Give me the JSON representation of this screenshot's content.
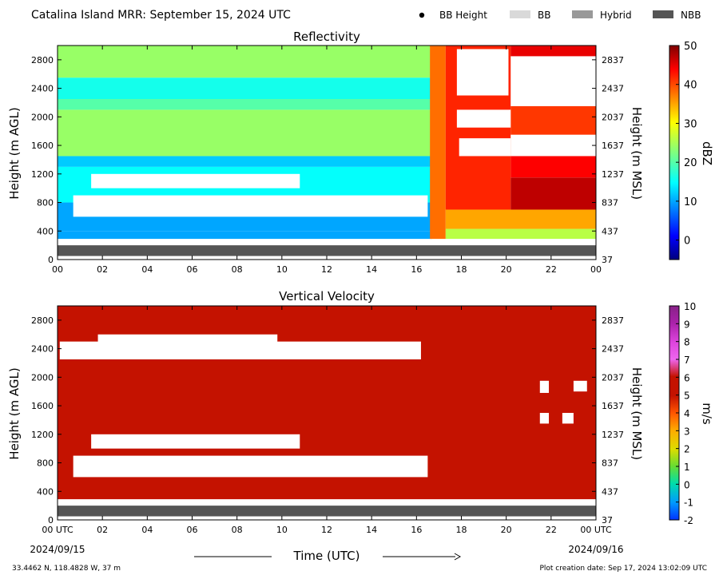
{
  "header": {
    "title": "Catalina Island MRR:  September 15, 2024 UTC",
    "legend": [
      {
        "label": "BB Height",
        "symbol": "dot",
        "color": "#000000"
      },
      {
        "label": "BB",
        "symbol": "patch",
        "color": "#d9d9d9"
      },
      {
        "label": "Hybrid",
        "symbol": "patch",
        "color": "#999999"
      },
      {
        "label": "NBB",
        "symbol": "patch",
        "color": "#555555"
      }
    ]
  },
  "chart_data": [
    {
      "type": "heatmap",
      "title": "Reflectivity",
      "ylabel": "Height (m AGL)",
      "ylabel_right": "Height (m MSL)",
      "xlim": [
        0,
        24
      ],
      "ylim": [
        0,
        3000
      ],
      "xticks": [
        "00",
        "02",
        "04",
        "06",
        "08",
        "10",
        "12",
        "14",
        "16",
        "18",
        "20",
        "22",
        "00"
      ],
      "yticks_left": [
        0,
        400,
        800,
        1200,
        1600,
        2000,
        2400,
        2800
      ],
      "yticks_right": [
        37,
        437,
        837,
        1237,
        1637,
        2037,
        2437,
        2837
      ],
      "colorbar": {
        "label": "dBZ",
        "min": -5,
        "max": 50,
        "ticks": [
          0,
          10,
          20,
          30,
          40,
          50
        ],
        "scale": "jet"
      },
      "valid_data_start_m": 290,
      "nbb_band_m": [
        50,
        200
      ],
      "fields": [
        {
          "x": [
            0,
            16.7
          ],
          "y": [
            290,
            400
          ],
          "value": 10
        },
        {
          "x": [
            0,
            16.7
          ],
          "y": [
            400,
            800
          ],
          "value": 10
        },
        {
          "x": [
            0,
            16.7
          ],
          "y": [
            800,
            1300
          ],
          "value": 15
        },
        {
          "x": [
            0,
            16.7
          ],
          "y": [
            1300,
            1450
          ],
          "value": 12
        },
        {
          "x": [
            0,
            16.7
          ],
          "y": [
            1450,
            2100
          ],
          "value": 24
        },
        {
          "x": [
            0,
            16.7
          ],
          "y": [
            2100,
            2250
          ],
          "value": 20
        },
        {
          "x": [
            0,
            16.7
          ],
          "y": [
            2250,
            2550
          ],
          "value": 16
        },
        {
          "x": [
            0,
            16.7
          ],
          "y": [
            2550,
            3000
          ],
          "value": 24
        },
        {
          "x": [
            16.6,
            17.3
          ],
          "y": [
            290,
            3000
          ],
          "value": 38
        },
        {
          "x": [
            17.3,
            24
          ],
          "y": [
            290,
            430
          ],
          "value": 26
        },
        {
          "x": [
            17.3,
            24
          ],
          "y": [
            430,
            700
          ],
          "value": 35
        },
        {
          "x": [
            17.3,
            20.2
          ],
          "y": [
            700,
            3000
          ],
          "value": 42
        },
        {
          "x": [
            20.2,
            24
          ],
          "y": [
            700,
            1150
          ],
          "value": 47
        },
        {
          "x": [
            20.2,
            24
          ],
          "y": [
            1150,
            1450
          ],
          "value": 44
        },
        {
          "x": [
            20.2,
            24
          ],
          "y": [
            1450,
            1700
          ],
          "value": 38
        },
        {
          "x": [
            20.2,
            24
          ],
          "y": [
            1700,
            2150
          ],
          "value": 41
        },
        {
          "x": [
            20.2,
            24
          ],
          "y": [
            2150,
            3000
          ],
          "value": 45
        }
      ],
      "gaps": [
        {
          "x": [
            0.7,
            16.5
          ],
          "y": [
            600,
            900
          ]
        },
        {
          "x": [
            1.5,
            10.8
          ],
          "y": [
            1000,
            1200
          ]
        },
        {
          "x": [
            17.8,
            20.1
          ],
          "y": [
            2300,
            2950
          ]
        },
        {
          "x": [
            17.9,
            20.2
          ],
          "y": [
            1450,
            1700
          ]
        },
        {
          "x": [
            17.8,
            20.2
          ],
          "y": [
            1850,
            2100
          ]
        },
        {
          "x": [
            20.2,
            24
          ],
          "y": [
            1450,
            1750
          ]
        },
        {
          "x": [
            20.2,
            24
          ],
          "y": [
            2150,
            2850
          ]
        }
      ]
    },
    {
      "type": "heatmap",
      "title": "Vertical Velocity",
      "ylabel": "Height (m AGL)",
      "ylabel_right": "Height (m MSL)",
      "xlim": [
        0,
        24
      ],
      "ylim": [
        0,
        3000
      ],
      "xticks": [
        "00 UTC",
        "02",
        "04",
        "06",
        "08",
        "10",
        "12",
        "14",
        "16",
        "18",
        "20",
        "22",
        "00 UTC"
      ],
      "yticks_left": [
        0,
        400,
        800,
        1200,
        1600,
        2000,
        2400,
        2800
      ],
      "yticks_right": [
        37,
        437,
        837,
        1237,
        1637,
        2037,
        2437,
        2837
      ],
      "colorbar": {
        "label": "m/s",
        "min": -2,
        "max": 10,
        "ticks": [
          -2,
          -1,
          0,
          1,
          2,
          3,
          4,
          5,
          6,
          7,
          8,
          9,
          10
        ],
        "scale": "velocity"
      },
      "valid_data_start_m": 290,
      "nbb_band_m": [
        50,
        200
      ],
      "fields": [
        {
          "x": [
            0,
            24
          ],
          "y": [
            290,
            3000
          ],
          "value": 5.7
        }
      ],
      "gaps": [
        {
          "x": [
            0.7,
            16.5
          ],
          "y": [
            600,
            900
          ]
        },
        {
          "x": [
            1.5,
            10.8
          ],
          "y": [
            1000,
            1200
          ]
        },
        {
          "x": [
            0.1,
            16.2
          ],
          "y": [
            2250,
            2500
          ]
        },
        {
          "x": [
            1.8,
            9.8
          ],
          "y": [
            2450,
            2600
          ]
        },
        {
          "x": [
            21.5,
            21.9
          ],
          "y": [
            1350,
            1500
          ]
        },
        {
          "x": [
            21.5,
            21.9
          ],
          "y": [
            1780,
            1950
          ]
        },
        {
          "x": [
            23,
            23.6
          ],
          "y": [
            1800,
            1950
          ]
        },
        {
          "x": [
            22.5,
            23
          ],
          "y": [
            1350,
            1500
          ]
        }
      ]
    }
  ],
  "xaxis": {
    "label": "Time (UTC)",
    "start_date": "2024/09/15",
    "end_date": "2024/09/16"
  },
  "footer": {
    "location": "33.4462 N, 118.4828 W, 37 m",
    "creation": "Plot creation date: Sep 17, 2024 13:02:09 UTC"
  }
}
